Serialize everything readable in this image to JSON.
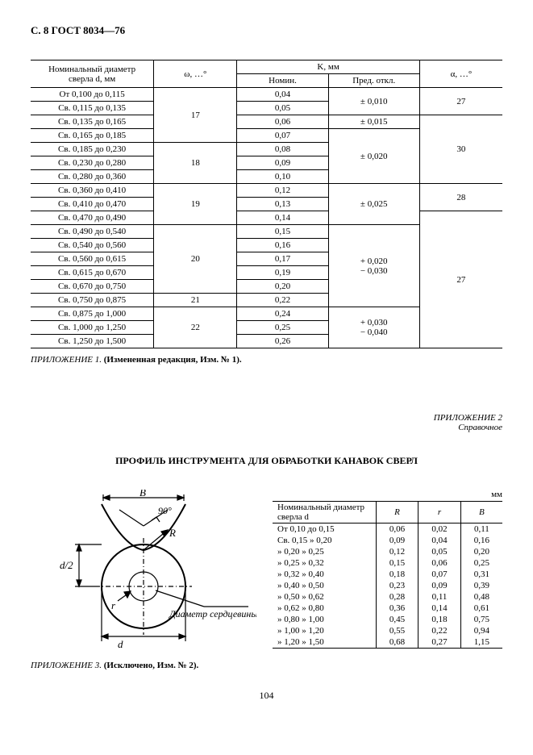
{
  "header": "С. 8 ГОСТ 8034—76",
  "table1": {
    "headers": {
      "col1": "Номинальный диаметр сверла d, мм",
      "col2": "ω, …°",
      "k_group": "K, мм",
      "k_nom": "Номин.",
      "k_dev": "Пред. откл.",
      "alpha": "α, …°"
    },
    "cells": {
      "r1c1": "От  0,100 до 0,115",
      "r1n": "0,04",
      "r2c1": "Св. 0,115 до 0,135",
      "r2n": "0,05",
      "r3c1": "Св. 0,135 до 0,165",
      "r3n": "0,06",
      "r4c1": "Св. 0,165 до 0,185",
      "r4n": "0,07",
      "r5c1": "Св. 0,185 до 0,230",
      "r5n": "0,08",
      "r6c1": "Св. 0,230 до 0,280",
      "r6n": "0,09",
      "r7c1": "Св. 0,280 до 0,360",
      "r7n": "0,10",
      "r8c1": "Св. 0,360 до 0,410",
      "r8n": "0,12",
      "r9c1": "Св. 0,410 до 0,470",
      "r9n": "0,13",
      "r10c1": "Св. 0,470 до 0,490",
      "r10n": "0,14",
      "r11c1": "Св. 0,490 до 0,540",
      "r11n": "0,15",
      "r12c1": "Св. 0,540 до 0,560",
      "r12n": "0,16",
      "r13c1": "Св. 0,560 до 0,615",
      "r13n": "0,17",
      "r14c1": "Св. 0,615 до 0,670",
      "r14n": "0,19",
      "r15c1": "Св. 0,670 до 0,750",
      "r15n": "0,20",
      "r16c1": "Св. 0,750 до 0,875",
      "r16n": "0,22",
      "r17c1": "Св. 0,875 до 1,000",
      "r17n": "0,24",
      "r18c1": "Св. 1,000 до 1,250",
      "r18n": "0,25",
      "r19c1": "Св. 1,250 до 1,500",
      "r19n": "0,26",
      "om1": "17",
      "om2": "18",
      "om3": "19",
      "om4": "20",
      "om5": "21",
      "om6": "22",
      "dv1": "± 0,010",
      "dv2": "± 0,015",
      "dv3": "± 0,020",
      "dv4": "± 0,025",
      "dv5a": "+ 0,020",
      "dv5b": "− 0,030",
      "dv6a": "+ 0,030",
      "dv6b": "− 0,040",
      "al1": "27",
      "al2": "30",
      "al3": "28",
      "al4": "27"
    }
  },
  "note1_i": "ПРИЛОЖЕНИЕ 1.",
  "note1_b": " (Измененная редакция, Изм. № 1).",
  "app2_title": "ПРИЛОЖЕНИЕ 2",
  "app2_sub": "Справочное",
  "title2": "ПРОФИЛЬ ИНСТРУМЕНТА ДЛЯ ОБРАБОТКИ КАНАВОК СВЕРЛ",
  "mm": "мм",
  "table2": {
    "headers": {
      "c1": "Номинальный диаметр сверла d",
      "c2": "R",
      "c3": "r",
      "c4": "B"
    },
    "rows": [
      [
        "От 0,10 до 0,15",
        "0,06",
        "0,02",
        "0,11"
      ],
      [
        "Св. 0,15 » 0,20",
        "0,09",
        "0,04",
        "0,16"
      ],
      [
        "» 0,20 » 0,25",
        "0,12",
        "0,05",
        "0,20"
      ],
      [
        "» 0,25 » 0,32",
        "0,15",
        "0,06",
        "0,25"
      ],
      [
        "» 0,32 » 0,40",
        "0,18",
        "0,07",
        "0,31"
      ],
      [
        "» 0,40 » 0,50",
        "0,23",
        "0,09",
        "0,39"
      ],
      [
        "» 0,50 » 0,62",
        "0,28",
        "0,11",
        "0,48"
      ],
      [
        "» 0,62 » 0,80",
        "0,36",
        "0,14",
        "0,61"
      ],
      [
        "» 0,80 » 1,00",
        "0,45",
        "0,18",
        "0,75"
      ],
      [
        "» 1,00 » 1,20",
        "0,55",
        "0,22",
        "0,94"
      ],
      [
        "» 1,20 » 1,50",
        "0,68",
        "0,27",
        "1,15"
      ]
    ]
  },
  "diagram": {
    "B": "B",
    "ang": "90°",
    "R": "R",
    "r": "r",
    "d2": "d/2",
    "d": "d",
    "core": "Диаметр сердцевины"
  },
  "note3_i": "ПРИЛОЖЕНИЕ 3.",
  "note3_b": " (Исключено, Изм. № 2).",
  "page": "104"
}
